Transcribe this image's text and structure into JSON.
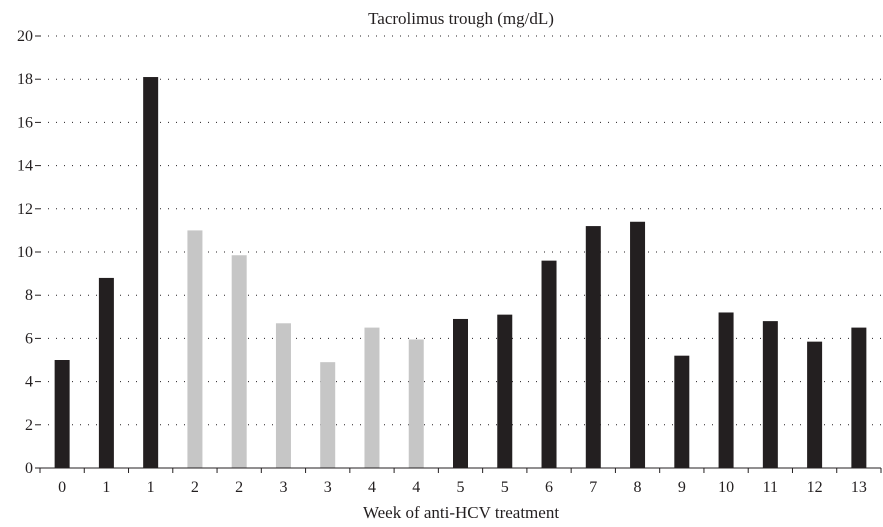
{
  "chart_data": {
    "type": "bar",
    "title": "Tacrolimus trough (mg/dL)",
    "xlabel": "Week of anti-HCV treatment",
    "ylabel": "",
    "ylim": [
      0,
      20
    ],
    "yticks": [
      "0",
      "2",
      "4",
      "6",
      "8",
      "10",
      "12",
      "14",
      "16",
      "18",
      "20"
    ],
    "grid": "horizontal dotted",
    "legend": "none",
    "categories": [
      "0",
      "1",
      "1",
      "2",
      "2",
      "3",
      "3",
      "4",
      "4",
      "5",
      "5",
      "6",
      "7",
      "8",
      "9",
      "10",
      "11",
      "12",
      "13"
    ],
    "values": [
      5.0,
      8.8,
      18.1,
      11.0,
      9.85,
      6.7,
      4.9,
      6.5,
      5.95,
      6.9,
      7.1,
      9.6,
      11.2,
      11.4,
      5.2,
      7.2,
      6.8,
      5.85,
      6.5
    ],
    "bar_colors": [
      "#231f20",
      "#231f20",
      "#231f20",
      "#c6c6c6",
      "#c6c6c6",
      "#c6c6c6",
      "#c6c6c6",
      "#c6c6c6",
      "#c6c6c6",
      "#231f20",
      "#231f20",
      "#231f20",
      "#231f20",
      "#231f20",
      "#231f20",
      "#231f20",
      "#231f20",
      "#231f20",
      "#231f20"
    ]
  }
}
